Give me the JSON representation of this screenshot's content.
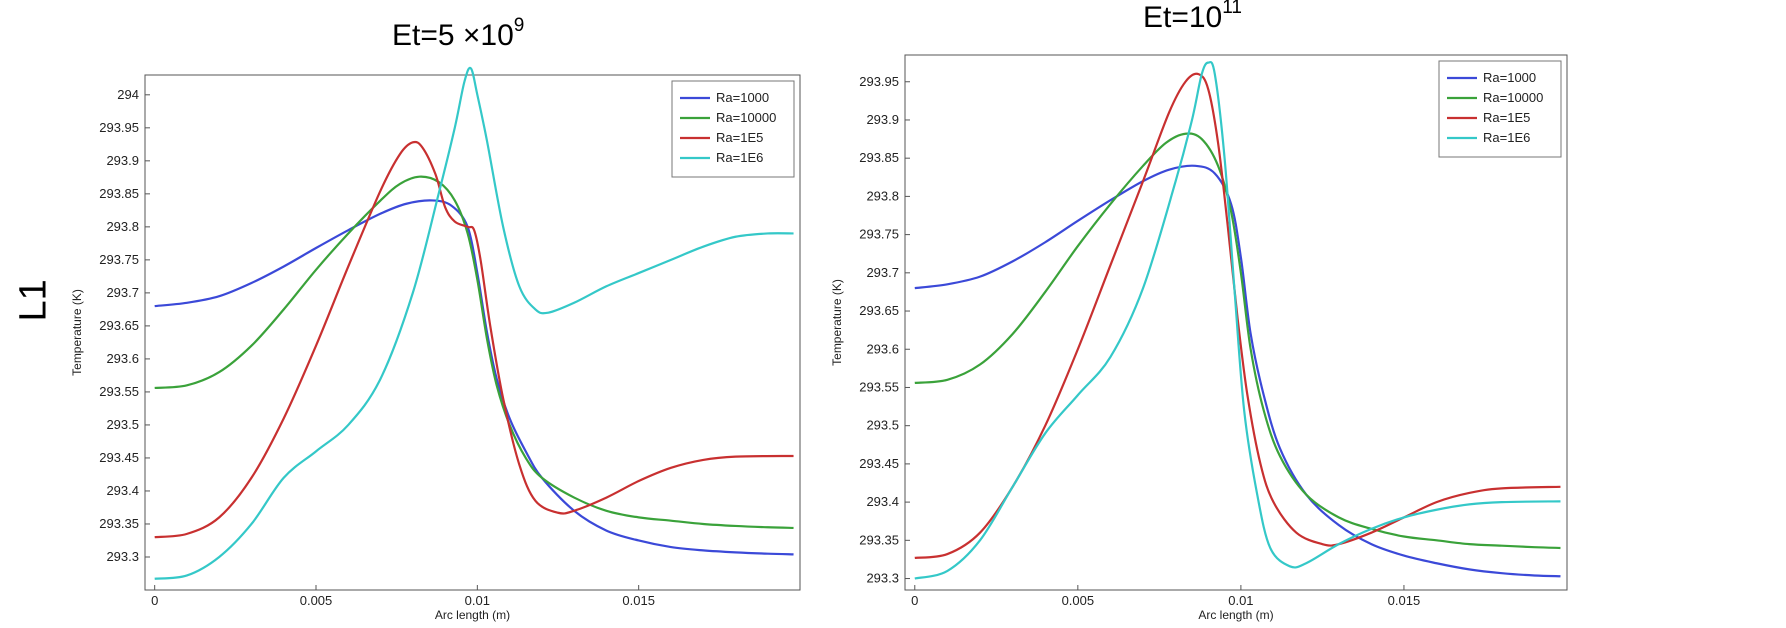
{
  "row_label": "L1",
  "chart_data": [
    {
      "type": "line",
      "title": {
        "base": "Et=5  ×10",
        "sup": "9"
      },
      "xlabel": "Arc length (m)",
      "ylabel": "Temperature (K)",
      "xlim": [
        -0.0003,
        0.02
      ],
      "ylim": [
        293.25,
        294.03
      ],
      "xticks": [
        0,
        0.005,
        0.01,
        0.015
      ],
      "xtick_labels": [
        "0",
        "0.005",
        "0.01",
        "0.015"
      ],
      "yticks": [
        293.3,
        293.35,
        293.4,
        293.45,
        293.5,
        293.55,
        293.6,
        293.65,
        293.7,
        293.75,
        293.8,
        293.85,
        293.9,
        293.95,
        294
      ],
      "ytick_labels": [
        "293.3",
        "293.35",
        "293.4",
        "293.45",
        "293.5",
        "293.55",
        "293.6",
        "293.65",
        "293.7",
        "293.75",
        "293.8",
        "293.85",
        "293.9",
        "293.95",
        "294"
      ],
      "grid": false,
      "legend_position": "top-right",
      "series": [
        {
          "name": "Ra=1000",
          "color": "#3b49d8",
          "points": [
            [
              0,
              293.68
            ],
            [
              0.001,
              293.685
            ],
            [
              0.002,
              293.695
            ],
            [
              0.003,
              293.715
            ],
            [
              0.004,
              293.74
            ],
            [
              0.005,
              293.768
            ],
            [
              0.006,
              293.795
            ],
            [
              0.007,
              293.82
            ],
            [
              0.0078,
              293.835
            ],
            [
              0.0086,
              293.84
            ],
            [
              0.0092,
              293.832
            ],
            [
              0.0097,
              293.8
            ],
            [
              0.01,
              293.73
            ],
            [
              0.0103,
              293.64
            ],
            [
              0.0106,
              293.57
            ],
            [
              0.011,
              293.51
            ],
            [
              0.0115,
              293.46
            ],
            [
              0.012,
              293.42
            ],
            [
              0.013,
              293.37
            ],
            [
              0.014,
              293.34
            ],
            [
              0.015,
              293.325
            ],
            [
              0.016,
              293.315
            ],
            [
              0.017,
              293.31
            ],
            [
              0.018,
              293.307
            ],
            [
              0.019,
              293.305
            ],
            [
              0.0198,
              293.304
            ]
          ]
        },
        {
          "name": "Ra=10000",
          "color": "#3aa23a",
          "points": [
            [
              0,
              293.556
            ],
            [
              0.001,
              293.56
            ],
            [
              0.002,
              293.58
            ],
            [
              0.003,
              293.62
            ],
            [
              0.004,
              293.675
            ],
            [
              0.005,
              293.735
            ],
            [
              0.006,
              293.79
            ],
            [
              0.007,
              293.84
            ],
            [
              0.0076,
              293.865
            ],
            [
              0.0082,
              293.876
            ],
            [
              0.0088,
              293.868
            ],
            [
              0.0093,
              293.84
            ],
            [
              0.0097,
              293.79
            ],
            [
              0.01,
              293.72
            ],
            [
              0.0103,
              293.63
            ],
            [
              0.0106,
              293.56
            ],
            [
              0.011,
              293.5
            ],
            [
              0.0115,
              293.45
            ],
            [
              0.012,
              293.42
            ],
            [
              0.013,
              293.39
            ],
            [
              0.014,
              293.37
            ],
            [
              0.015,
              293.36
            ],
            [
              0.016,
              293.355
            ],
            [
              0.017,
              293.35
            ],
            [
              0.018,
              293.347
            ],
            [
              0.019,
              293.345
            ],
            [
              0.0198,
              293.344
            ]
          ]
        },
        {
          "name": "Ra=1E5",
          "color": "#c83030",
          "points": [
            [
              0,
              293.33
            ],
            [
              0.001,
              293.335
            ],
            [
              0.002,
              293.36
            ],
            [
              0.003,
              293.42
            ],
            [
              0.004,
              293.51
            ],
            [
              0.005,
              293.62
            ],
            [
              0.006,
              293.74
            ],
            [
              0.007,
              293.855
            ],
            [
              0.0076,
              293.91
            ],
            [
              0.008,
              293.928
            ],
            [
              0.0083,
              293.92
            ],
            [
              0.0087,
              293.88
            ],
            [
              0.009,
              293.83
            ],
            [
              0.0093,
              293.808
            ],
            [
              0.0097,
              293.8
            ],
            [
              0.0099,
              293.795
            ],
            [
              0.0101,
              293.75
            ],
            [
              0.0104,
              293.65
            ],
            [
              0.0108,
              293.54
            ],
            [
              0.0113,
              293.44
            ],
            [
              0.0118,
              293.385
            ],
            [
              0.0125,
              293.367
            ],
            [
              0.013,
              293.37
            ],
            [
              0.014,
              293.39
            ],
            [
              0.015,
              293.415
            ],
            [
              0.016,
              293.435
            ],
            [
              0.017,
              293.447
            ],
            [
              0.018,
              293.452
            ],
            [
              0.0198,
              293.453
            ]
          ]
        },
        {
          "name": "Ra=1E6",
          "color": "#34c8c8",
          "points": [
            [
              0,
              293.267
            ],
            [
              0.001,
              293.272
            ],
            [
              0.002,
              293.3
            ],
            [
              0.003,
              293.35
            ],
            [
              0.004,
              293.42
            ],
            [
              0.005,
              293.46
            ],
            [
              0.006,
              293.5
            ],
            [
              0.007,
              293.57
            ],
            [
              0.008,
              293.7
            ],
            [
              0.0088,
              293.85
            ],
            [
              0.0093,
              293.95
            ],
            [
              0.0096,
              294.02
            ],
            [
              0.0098,
              294.04
            ],
            [
              0.01,
              294.0
            ],
            [
              0.0103,
              293.93
            ],
            [
              0.0108,
              293.8
            ],
            [
              0.0113,
              293.71
            ],
            [
              0.0118,
              293.675
            ],
            [
              0.0122,
              293.67
            ],
            [
              0.013,
              293.685
            ],
            [
              0.014,
              293.71
            ],
            [
              0.015,
              293.73
            ],
            [
              0.016,
              293.75
            ],
            [
              0.017,
              293.77
            ],
            [
              0.018,
              293.785
            ],
            [
              0.019,
              293.79
            ],
            [
              0.0198,
              293.79
            ]
          ]
        }
      ]
    },
    {
      "type": "line",
      "title": {
        "base": "Et=10",
        "sup": "11"
      },
      "xlabel": "Arc length (m)",
      "ylabel": "Temperature (K)",
      "xlim": [
        -0.0003,
        0.02
      ],
      "ylim": [
        293.285,
        293.985
      ],
      "xticks": [
        0,
        0.005,
        0.01,
        0.015
      ],
      "xtick_labels": [
        "0",
        "0.005",
        "0.01",
        "0.015"
      ],
      "yticks": [
        293.3,
        293.35,
        293.4,
        293.45,
        293.5,
        293.55,
        293.6,
        293.65,
        293.7,
        293.75,
        293.8,
        293.85,
        293.9,
        293.95
      ],
      "ytick_labels": [
        "293.3",
        "293.35",
        "293.4",
        "293.45",
        "293.5",
        "293.55",
        "293.6",
        "293.65",
        "293.7",
        "293.75",
        "293.8",
        "293.85",
        "293.9",
        "293.95"
      ],
      "grid": false,
      "legend_position": "top-right",
      "series": [
        {
          "name": "Ra=1000",
          "color": "#3b49d8",
          "points": [
            [
              0,
              293.68
            ],
            [
              0.001,
              293.685
            ],
            [
              0.002,
              293.695
            ],
            [
              0.003,
              293.715
            ],
            [
              0.004,
              293.74
            ],
            [
              0.005,
              293.768
            ],
            [
              0.006,
              293.795
            ],
            [
              0.007,
              293.82
            ],
            [
              0.0078,
              293.835
            ],
            [
              0.0086,
              293.84
            ],
            [
              0.0092,
              293.83
            ],
            [
              0.0097,
              293.79
            ],
            [
              0.01,
              293.72
            ],
            [
              0.0103,
              293.62
            ],
            [
              0.0107,
              293.54
            ],
            [
              0.0112,
              293.47
            ],
            [
              0.012,
              293.41
            ],
            [
              0.013,
              293.37
            ],
            [
              0.014,
              293.345
            ],
            [
              0.015,
              293.33
            ],
            [
              0.016,
              293.32
            ],
            [
              0.017,
              293.312
            ],
            [
              0.018,
              293.307
            ],
            [
              0.019,
              293.304
            ],
            [
              0.0198,
              293.303
            ]
          ]
        },
        {
          "name": "Ra=10000",
          "color": "#3aa23a",
          "points": [
            [
              0,
              293.556
            ],
            [
              0.001,
              293.56
            ],
            [
              0.002,
              293.58
            ],
            [
              0.003,
              293.62
            ],
            [
              0.004,
              293.675
            ],
            [
              0.005,
              293.735
            ],
            [
              0.006,
              293.79
            ],
            [
              0.007,
              293.84
            ],
            [
              0.0077,
              293.87
            ],
            [
              0.0083,
              293.882
            ],
            [
              0.0088,
              293.875
            ],
            [
              0.0093,
              293.84
            ],
            [
              0.0097,
              293.78
            ],
            [
              0.01,
              293.7
            ],
            [
              0.0103,
              293.6
            ],
            [
              0.0107,
              293.52
            ],
            [
              0.0112,
              293.46
            ],
            [
              0.012,
              293.41
            ],
            [
              0.013,
              293.38
            ],
            [
              0.014,
              293.365
            ],
            [
              0.015,
              293.355
            ],
            [
              0.016,
              293.35
            ],
            [
              0.017,
              293.345
            ],
            [
              0.018,
              293.343
            ],
            [
              0.019,
              293.341
            ],
            [
              0.0198,
              293.34
            ]
          ]
        },
        {
          "name": "Ra=1E5",
          "color": "#c83030",
          "points": [
            [
              0,
              293.327
            ],
            [
              0.001,
              293.332
            ],
            [
              0.002,
              293.36
            ],
            [
              0.003,
              293.42
            ],
            [
              0.004,
              293.5
            ],
            [
              0.005,
              293.6
            ],
            [
              0.006,
              293.71
            ],
            [
              0.007,
              293.82
            ],
            [
              0.0078,
              293.91
            ],
            [
              0.0083,
              293.95
            ],
            [
              0.0087,
              293.96
            ],
            [
              0.009,
              293.94
            ],
            [
              0.0093,
              293.87
            ],
            [
              0.0096,
              293.76
            ],
            [
              0.0099,
              293.64
            ],
            [
              0.0102,
              293.54
            ],
            [
              0.0106,
              293.45
            ],
            [
              0.011,
              293.4
            ],
            [
              0.0117,
              293.36
            ],
            [
              0.0125,
              293.345
            ],
            [
              0.013,
              293.345
            ],
            [
              0.014,
              293.36
            ],
            [
              0.015,
              293.38
            ],
            [
              0.016,
              293.4
            ],
            [
              0.017,
              293.412
            ],
            [
              0.018,
              293.418
            ],
            [
              0.0198,
              293.42
            ]
          ]
        },
        {
          "name": "Ra=1E6",
          "color": "#34c8c8",
          "points": [
            [
              0,
              293.3
            ],
            [
              0.001,
              293.31
            ],
            [
              0.002,
              293.35
            ],
            [
              0.003,
              293.42
            ],
            [
              0.004,
              293.49
            ],
            [
              0.005,
              293.54
            ],
            [
              0.006,
              293.59
            ],
            [
              0.007,
              293.68
            ],
            [
              0.008,
              293.82
            ],
            [
              0.0085,
              293.9
            ],
            [
              0.0088,
              293.96
            ],
            [
              0.009,
              293.975
            ],
            [
              0.0092,
              293.96
            ],
            [
              0.0095,
              293.85
            ],
            [
              0.0098,
              293.68
            ],
            [
              0.0101,
              293.52
            ],
            [
              0.0105,
              293.41
            ],
            [
              0.0109,
              293.34
            ],
            [
              0.0115,
              293.316
            ],
            [
              0.012,
              293.32
            ],
            [
              0.013,
              293.345
            ],
            [
              0.014,
              293.365
            ],
            [
              0.015,
              293.38
            ],
            [
              0.016,
              293.39
            ],
            [
              0.017,
              293.397
            ],
            [
              0.018,
              293.4
            ],
            [
              0.0198,
              293.401
            ]
          ]
        }
      ]
    }
  ]
}
